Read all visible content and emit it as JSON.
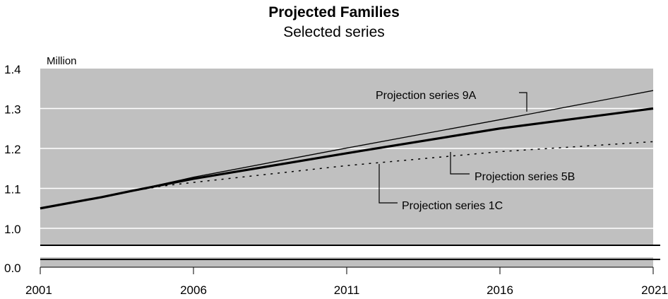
{
  "chart_data": {
    "type": "line",
    "title": "Projected Families",
    "subtitle": "Selected series",
    "ylabel": "Million",
    "xlabel": "",
    "x_ticks": [
      "2001",
      "2006",
      "2011",
      "2016",
      "2021"
    ],
    "y_ticks": [
      "0.0",
      "1.0",
      "1.1",
      "1.2",
      "1.3",
      "1.4"
    ],
    "xlim": [
      2001,
      2021
    ],
    "ylim_main": [
      0.95,
      1.4
    ],
    "axis_break": true,
    "grid": true,
    "background": "#c0c0c0",
    "series": [
      {
        "name": "Projection series 9A",
        "style": "thin",
        "x": [
          2001,
          2003,
          2004,
          2005,
          2006,
          2011,
          2016,
          2021
        ],
        "y": [
          1.05,
          1.078,
          1.094,
          1.111,
          1.128,
          1.201,
          1.272,
          1.345
        ]
      },
      {
        "name": "Projection series 5B",
        "style": "thick",
        "x": [
          2001,
          2003,
          2004,
          2005,
          2006,
          2011,
          2016,
          2021
        ],
        "y": [
          1.05,
          1.078,
          1.094,
          1.109,
          1.124,
          1.188,
          1.25,
          1.3
        ]
      },
      {
        "name": "Projection series 1C",
        "style": "dotted",
        "x": [
          2001,
          2003,
          2004,
          2005,
          2006,
          2011,
          2016,
          2021
        ],
        "y": [
          1.05,
          1.078,
          1.093,
          1.106,
          1.115,
          1.157,
          1.192,
          1.217
        ]
      }
    ]
  }
}
